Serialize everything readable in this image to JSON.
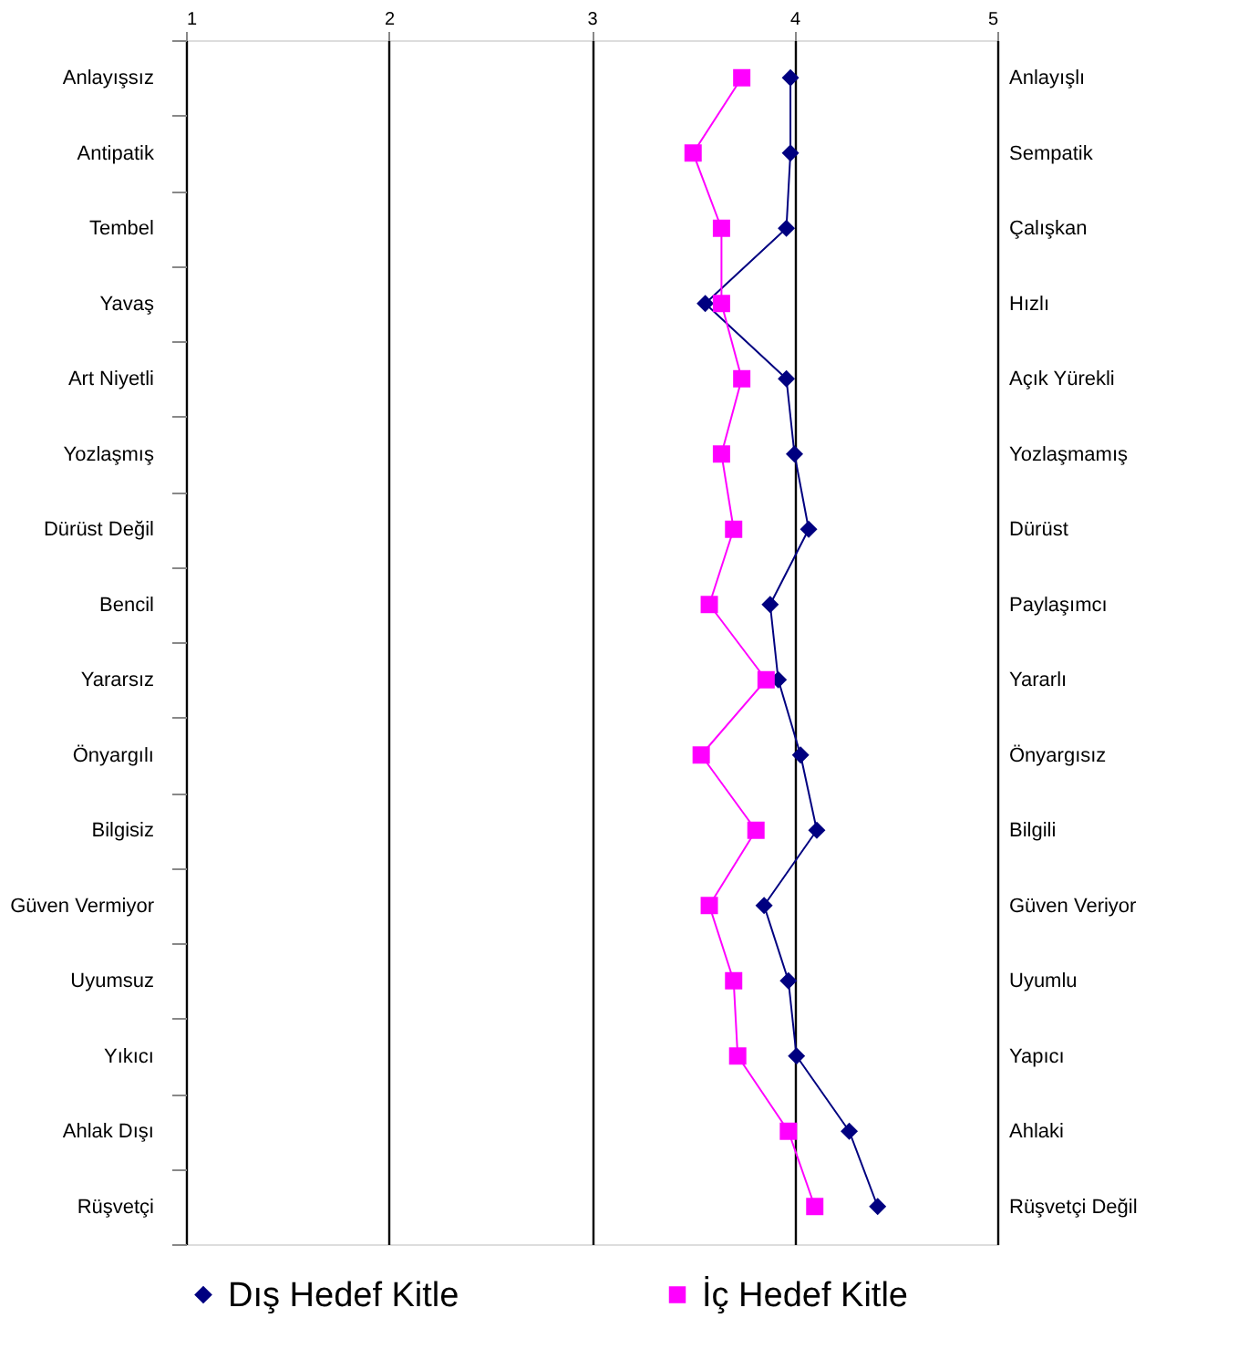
{
  "chart_data": {
    "type": "line",
    "orientation": "horizontal",
    "categories": [
      "Anlayışsız",
      "Antipatik",
      "Tembel",
      "Yavaş",
      "Art Niyetli",
      "Yozlaşmış",
      "Dürüst Değil",
      "Bencil",
      "Yararsız",
      "Önyargılı",
      "Bilgisiz",
      "Güven Vermiyor",
      "Uyumsuz",
      "Yıkıcı",
      "Ahlak Dışı",
      "Rüşvetçi"
    ],
    "y2_categories": [
      "Anlayışlı",
      "Sempatik",
      "Çalışkan",
      "Hızlı",
      "Açık Yürekli",
      "Yozlaşmamış",
      "Dürüst",
      "Paylaşımcı",
      "Yararlı",
      "Önyargısız",
      "Bilgili",
      "Güven Veriyor",
      "Uyumlu",
      "Yapıcı",
      "Ahlaki",
      "Rüşvetçi Değil"
    ],
    "series": [
      {
        "name": "Dış Hedef Kitle",
        "color": "#000080",
        "marker": "diamond",
        "values": [
          3.98,
          3.98,
          3.96,
          3.56,
          3.96,
          4.0,
          4.07,
          3.88,
          3.92,
          4.03,
          4.11,
          3.85,
          3.97,
          4.01,
          4.27,
          4.41
        ]
      },
      {
        "name": "İç Hedef Kitle",
        "color": "#ff00ff",
        "marker": "square",
        "values": [
          3.74,
          3.5,
          3.64,
          3.64,
          3.74,
          3.64,
          3.7,
          3.58,
          3.86,
          3.54,
          3.81,
          3.58,
          3.7,
          3.72,
          3.97,
          4.1
        ]
      }
    ],
    "xlim": [
      1,
      5
    ],
    "xticks": [
      1,
      2,
      3,
      4,
      5
    ],
    "grid": "x",
    "legend": "bottom"
  }
}
